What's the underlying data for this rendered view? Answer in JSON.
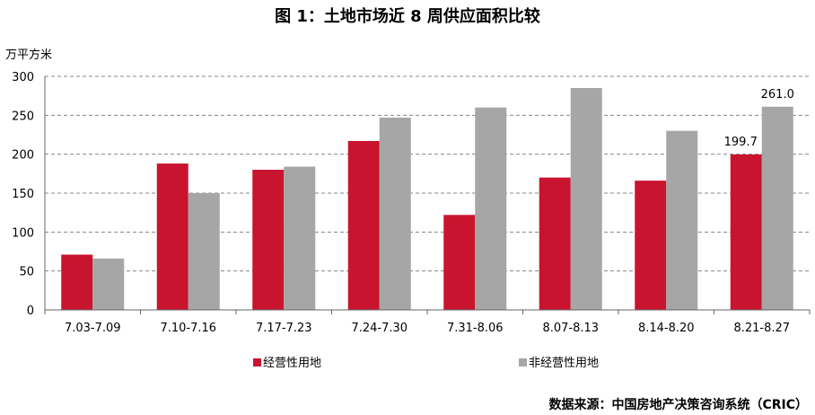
{
  "title": "图 1：土地市场近 8 周供应面积比较",
  "unit_label": "万平方米",
  "source": "数据来源：中国房地产决策咨询系统（CRIC）",
  "colors": {
    "series1": "#C8142E",
    "series2": "#A6A6A6",
    "grid": "#888888",
    "axis": "#666666"
  },
  "chart_data": {
    "type": "bar",
    "title": "图 1：土地市场近 8 周供应面积比较",
    "ylabel": "万平方米",
    "xlabel": "",
    "ylim": [
      0,
      300
    ],
    "yticks": [
      0,
      50,
      100,
      150,
      200,
      250,
      300
    ],
    "grid": true,
    "legend_position": "bottom",
    "categories": [
      "7.03-7.09",
      "7.10-7.16",
      "7.17-7.23",
      "7.24-7.30",
      "7.31-8.06",
      "8.07-8.13",
      "8.14-8.20",
      "8.21-8.27"
    ],
    "series": [
      {
        "name": "经营性用地",
        "values": [
          71,
          188,
          180,
          217,
          122,
          170,
          166,
          199.7
        ]
      },
      {
        "name": "非经营性用地",
        "values": [
          66,
          150,
          184,
          247,
          260,
          285,
          230,
          261.0
        ]
      }
    ],
    "data_labels": [
      {
        "series": 0,
        "index": 7,
        "text": "199.7"
      },
      {
        "series": 1,
        "index": 7,
        "text": "261.0"
      }
    ]
  }
}
